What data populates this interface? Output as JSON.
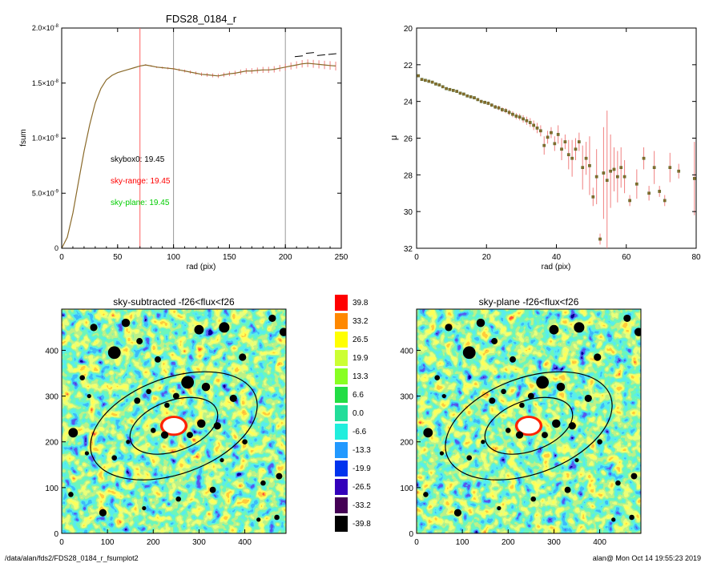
{
  "footer": {
    "path": "/data/alan/fds2/FDS28_0184_r_fsumplot2",
    "stamp": "alan@  Mon Oct 14 19:55:23 2019"
  },
  "colors": {
    "data_line": "#8a6a2a",
    "error_bar": "#f08080",
    "skybox0": "#000000",
    "sky_range": "#ff0000",
    "sky_plane": "#00cc00",
    "ellipse": "#000000"
  },
  "chart_data": [
    {
      "id": "fsum",
      "type": "line",
      "title": "FDS28_0184_r",
      "xlabel": "rad (pix)",
      "ylabel": "fsum",
      "xlim": [
        0,
        250
      ],
      "ylim": [
        0,
        2e-08
      ],
      "xticks": [
        0,
        50,
        100,
        150,
        200,
        250
      ],
      "yticks": [
        {
          "value": 0,
          "mant": "0",
          "exp": ""
        },
        {
          "value": 5e-09,
          "mant": "5.0×10",
          "exp": "-9"
        },
        {
          "value": 1e-08,
          "mant": "1.0×10",
          "exp": "-8"
        },
        {
          "value": 1.5e-08,
          "mant": "1.5×10",
          "exp": "-8"
        },
        {
          "value": 2e-08,
          "mant": "2.0×10",
          "exp": "-8"
        }
      ],
      "vlines": [
        {
          "x": 70,
          "color": "#ff6060"
        },
        {
          "x": 100,
          "color": "#999999"
        },
        {
          "x": 200,
          "color": "#999999"
        }
      ],
      "annotations": [
        {
          "text": "skybox0: 19.45",
          "color": "#000000"
        },
        {
          "text": "sky-range: 19.45",
          "color": "#ff0000"
        },
        {
          "text": "sky-plane: 19.45",
          "color": "#00cc00"
        }
      ],
      "series": [
        {
          "x": [
            0,
            5,
            10,
            15,
            20,
            25,
            30,
            35,
            40,
            45,
            50,
            55,
            60,
            65,
            70,
            75,
            80,
            85,
            90,
            95,
            100,
            105,
            110,
            115,
            120,
            125,
            130,
            135,
            140,
            145,
            150,
            155,
            160,
            165,
            170,
            175,
            180,
            185,
            190,
            195,
            200,
            205,
            210,
            215,
            220,
            225,
            230,
            235,
            240,
            245
          ],
          "y": [
            0,
            1e-09,
            3.2e-09,
            6e-09,
            8.8e-09,
            1.12e-08,
            1.32e-08,
            1.45e-08,
            1.53e-08,
            1.57e-08,
            1.595e-08,
            1.61e-08,
            1.625e-08,
            1.64e-08,
            1.655e-08,
            1.665e-08,
            1.655e-08,
            1.645e-08,
            1.64e-08,
            1.635e-08,
            1.63e-08,
            1.62e-08,
            1.61e-08,
            1.6e-08,
            1.59e-08,
            1.58e-08,
            1.575e-08,
            1.57e-08,
            1.565e-08,
            1.575e-08,
            1.585e-08,
            1.59e-08,
            1.6e-08,
            1.61e-08,
            1.61e-08,
            1.615e-08,
            1.62e-08,
            1.62e-08,
            1.625e-08,
            1.635e-08,
            1.645e-08,
            1.655e-08,
            1.665e-08,
            1.675e-08,
            1.68e-08,
            1.675e-08,
            1.67e-08,
            1.665e-08,
            1.66e-08,
            1.655e-08
          ],
          "err": [
            0,
            0,
            0,
            0,
            0,
            0,
            0,
            0,
            0,
            0,
            1e-11,
            2e-11,
            3e-11,
            4e-11,
            5e-11,
            6e-11,
            7e-11,
            8e-11,
            9e-11,
            1e-10,
            1.1e-10,
            1.2e-10,
            1.3e-10,
            1.4e-10,
            1.5e-10,
            1.6e-10,
            1.7e-10,
            1.8e-10,
            1.9e-10,
            2e-10,
            2.1e-10,
            2.2e-10,
            2.3e-10,
            2.4e-10,
            2.5e-10,
            2.6e-10,
            2.7e-10,
            2.8e-10,
            2.9e-10,
            3e-10,
            3.1e-10,
            3.2e-10,
            3.3e-10,
            3.4e-10,
            3.5e-10,
            3.6e-10,
            3.7e-10,
            3.8e-10,
            3.9e-10,
            4e-10
          ],
          "dashed_upper": [
            {
              "x": 212,
              "y": 1.74e-08
            },
            {
              "x": 222,
              "y": 1.77e-08
            },
            {
              "x": 232,
              "y": 1.75e-08
            },
            {
              "x": 242,
              "y": 1.76e-08
            }
          ]
        }
      ]
    },
    {
      "id": "mu",
      "type": "scatter",
      "title": "",
      "xlabel": "rad (pix)",
      "ylabel": "μ",
      "xlim": [
        0,
        80
      ],
      "ylim": [
        32,
        20
      ],
      "xticks": [
        0,
        20,
        40,
        60,
        80
      ],
      "yticks": [
        20,
        22,
        24,
        26,
        28,
        30,
        32
      ],
      "series": [
        {
          "x": [
            0.5,
            1.5,
            2.5,
            3.5,
            4.5,
            5.5,
            6.5,
            7.5,
            8.5,
            9.5,
            10.5,
            11.5,
            12.5,
            13.5,
            14.5,
            15.5,
            16.5,
            17.5,
            18.5,
            19.5,
            20.5,
            21.5,
            22.5,
            23.5,
            24.5,
            25.5,
            26.5,
            27.5,
            28.5,
            29.5,
            30.5,
            31.5,
            32.5,
            33.5,
            34.5,
            35.5,
            36.5,
            37.5,
            38.5,
            39.5,
            40.5,
            41.5,
            42.5,
            43.5,
            44.5,
            45.5,
            46.5,
            47.5,
            48.5,
            49.5,
            50.5,
            51.5,
            52.5,
            53.5,
            54.5,
            55.5,
            56.5,
            57.5,
            58.5,
            59.5,
            61,
            63,
            65,
            66.5,
            68,
            69.5,
            71,
            72.5,
            75,
            79.5
          ],
          "y": [
            22.6,
            22.8,
            22.85,
            22.9,
            22.95,
            23.05,
            23.1,
            23.2,
            23.3,
            23.35,
            23.4,
            23.45,
            23.55,
            23.6,
            23.7,
            23.75,
            23.8,
            23.9,
            24.0,
            24.05,
            24.1,
            24.2,
            24.3,
            24.35,
            24.45,
            24.5,
            24.6,
            24.7,
            24.8,
            24.85,
            24.95,
            25.05,
            25.15,
            25.3,
            25.45,
            25.6,
            26.4,
            25.95,
            25.7,
            26.3,
            25.8,
            26.6,
            26.2,
            26.9,
            27.1,
            26.6,
            26.2,
            27.6,
            27.1,
            27.5,
            29.2,
            28.1,
            31.5,
            27.9,
            28.3,
            27.8,
            27.7,
            28.1,
            27.6,
            28.1,
            29.4,
            28.5,
            27.1,
            29.0,
            27.6,
            28.9,
            29.4,
            27.6,
            27.8,
            28.2
          ],
          "err": [
            0.05,
            0.05,
            0.05,
            0.05,
            0.05,
            0.05,
            0.05,
            0.05,
            0.05,
            0.05,
            0.06,
            0.06,
            0.06,
            0.07,
            0.07,
            0.07,
            0.08,
            0.08,
            0.09,
            0.09,
            0.1,
            0.1,
            0.11,
            0.12,
            0.13,
            0.14,
            0.15,
            0.16,
            0.17,
            0.18,
            0.2,
            0.22,
            0.24,
            0.26,
            0.28,
            0.3,
            0.5,
            0.35,
            0.3,
            0.4,
            0.5,
            0.6,
            0.4,
            0.8,
            1.0,
            0.6,
            0.5,
            1.2,
            0.9,
            1.6,
            0.5,
            1.5,
            0.3,
            2.5,
            3.8,
            2.0,
            1.2,
            1.4,
            1.1,
            0.9,
            0.3,
            0.8,
            0.6,
            0.4,
            0.9,
            0.3,
            0.3,
            0.8,
            0.4,
            2.0
          ]
        }
      ]
    },
    {
      "id": "sky-subtracted",
      "type": "heatmap",
      "title": "sky-subtracted -f26<flux<f26",
      "xlim": [
        0,
        490
      ],
      "ylim": [
        0,
        490
      ],
      "xticks": [
        0,
        100,
        200,
        300,
        400
      ],
      "yticks": [
        0,
        100,
        200,
        300,
        400
      ],
      "galaxy_center": [
        245,
        235
      ],
      "ellipses": [
        {
          "a": 190,
          "b": 105,
          "angle_deg": -20
        },
        {
          "a": 100,
          "b": 55,
          "angle_deg": -20
        }
      ],
      "masked_stars": [
        [
          70,
          450,
          7
        ],
        [
          115,
          395,
          12
        ],
        [
          140,
          460,
          8
        ],
        [
          170,
          420,
          6
        ],
        [
          45,
          340,
          5
        ],
        [
          60,
          300,
          4
        ],
        [
          210,
          380,
          6
        ],
        [
          300,
          445,
          9
        ],
        [
          355,
          450,
          10
        ],
        [
          460,
          470,
          7
        ],
        [
          485,
          440,
          8
        ],
        [
          395,
          385,
          7
        ],
        [
          275,
          330,
          12
        ],
        [
          315,
          320,
          8
        ],
        [
          250,
          300,
          6
        ],
        [
          190,
          310,
          5
        ],
        [
          165,
          290,
          6
        ],
        [
          230,
          280,
          5
        ],
        [
          375,
          295,
          7
        ],
        [
          305,
          240,
          8
        ],
        [
          340,
          235,
          7
        ],
        [
          280,
          215,
          6
        ],
        [
          200,
          225,
          5
        ],
        [
          225,
          215,
          7
        ],
        [
          25,
          220,
          9
        ],
        [
          55,
          175,
          4
        ],
        [
          115,
          165,
          5
        ],
        [
          475,
          125,
          6
        ],
        [
          440,
          110,
          5
        ],
        [
          330,
          95,
          6
        ],
        [
          255,
          75,
          5
        ],
        [
          180,
          55,
          4
        ],
        [
          90,
          45,
          7
        ],
        [
          470,
          35,
          5
        ],
        [
          430,
          30,
          4
        ],
        [
          20,
          85,
          5
        ],
        [
          145,
          200,
          4
        ],
        [
          400,
          200,
          5
        ],
        [
          350,
          160,
          4
        ]
      ]
    },
    {
      "id": "colorbar",
      "type": "table",
      "levels": [
        {
          "label": "39.8",
          "color": "#ff0000"
        },
        {
          "label": "33.2",
          "color": "#ff8800"
        },
        {
          "label": "26.5",
          "color": "#ffff00"
        },
        {
          "label": "19.9",
          "color": "#ccff33"
        },
        {
          "label": "13.3",
          "color": "#88ff22"
        },
        {
          "label": "6.6",
          "color": "#22dd44"
        },
        {
          "label": "0.0",
          "color": "#22dd99"
        },
        {
          "label": "-6.6",
          "color": "#22eedd"
        },
        {
          "label": "-13.3",
          "color": "#2299ff"
        },
        {
          "label": "-19.9",
          "color": "#0033ee"
        },
        {
          "label": "-26.5",
          "color": "#3300bb"
        },
        {
          "label": "-33.2",
          "color": "#440055"
        },
        {
          "label": "-39.8",
          "color": "#000000"
        }
      ]
    },
    {
      "id": "sky-plane",
      "type": "heatmap",
      "title": "sky-plane -f26<flux<f26",
      "xlim": [
        0,
        490
      ],
      "ylim": [
        0,
        490
      ],
      "xticks": [
        0,
        100,
        200,
        300,
        400
      ],
      "yticks": [
        0,
        100,
        200,
        300,
        400
      ],
      "galaxy_center": [
        245,
        235
      ],
      "ellipses": [
        {
          "a": 190,
          "b": 105,
          "angle_deg": -20
        },
        {
          "a": 100,
          "b": 55,
          "angle_deg": -20
        }
      ],
      "masked_stars": [
        [
          70,
          450,
          7
        ],
        [
          115,
          395,
          12
        ],
        [
          140,
          460,
          8
        ],
        [
          170,
          420,
          6
        ],
        [
          45,
          340,
          5
        ],
        [
          60,
          300,
          4
        ],
        [
          210,
          380,
          6
        ],
        [
          300,
          445,
          9
        ],
        [
          355,
          450,
          10
        ],
        [
          460,
          470,
          7
        ],
        [
          485,
          440,
          8
        ],
        [
          395,
          385,
          7
        ],
        [
          275,
          330,
          12
        ],
        [
          315,
          320,
          8
        ],
        [
          250,
          300,
          6
        ],
        [
          190,
          310,
          5
        ],
        [
          165,
          290,
          6
        ],
        [
          230,
          280,
          5
        ],
        [
          375,
          295,
          7
        ],
        [
          305,
          240,
          8
        ],
        [
          340,
          235,
          7
        ],
        [
          280,
          215,
          6
        ],
        [
          200,
          225,
          5
        ],
        [
          225,
          215,
          7
        ],
        [
          25,
          220,
          9
        ],
        [
          55,
          175,
          4
        ],
        [
          115,
          165,
          5
        ],
        [
          475,
          125,
          6
        ],
        [
          440,
          110,
          5
        ],
        [
          330,
          95,
          6
        ],
        [
          255,
          75,
          5
        ],
        [
          180,
          55,
          4
        ],
        [
          90,
          45,
          7
        ],
        [
          470,
          35,
          5
        ],
        [
          430,
          30,
          4
        ],
        [
          20,
          85,
          5
        ],
        [
          145,
          200,
          4
        ],
        [
          400,
          200,
          5
        ],
        [
          350,
          160,
          4
        ]
      ]
    }
  ]
}
